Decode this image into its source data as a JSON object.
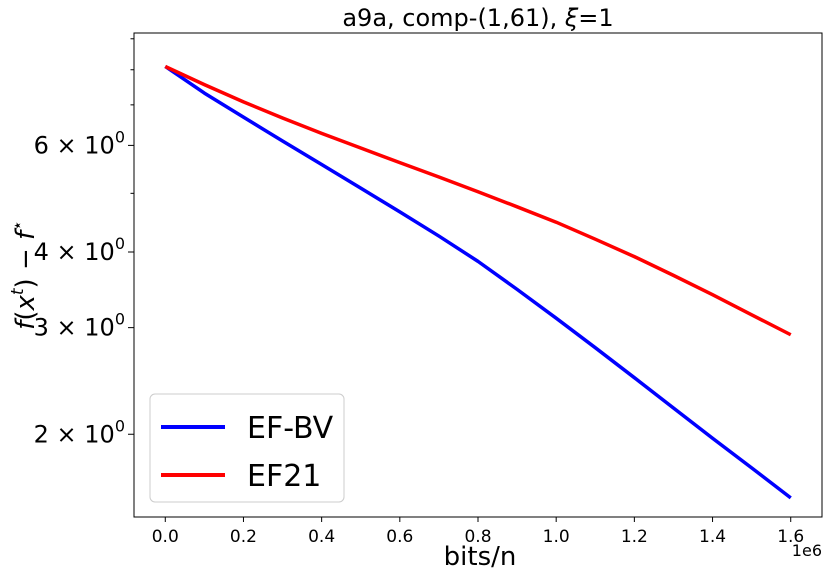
{
  "chart_data": {
    "type": "line",
    "title_parts": {
      "prefix": "a9a, comp-(1,61), ",
      "xi": "ξ",
      "suffix": "=1"
    },
    "xlabel": "bits/n",
    "ylabel_parts": {
      "f": "f",
      "open": "(",
      "x": "x",
      "t": "t",
      "close": ")",
      "minus": " − ",
      "fstar": "f",
      "star": "⋆"
    },
    "x_offset_label": "1e6",
    "x_scale_factor": 1000000,
    "x_ticks": [
      0.0,
      0.2,
      0.4,
      0.6,
      0.8,
      1.0,
      1.2,
      1.4,
      1.6
    ],
    "x_tick_labels": [
      "0.0",
      "0.2",
      "0.4",
      "0.6",
      "0.8",
      "1.0",
      "1.2",
      "1.4",
      "1.6"
    ],
    "xlim": [
      -0.08,
      1.68
    ],
    "y_scale": "log",
    "ylim": [
      1.46,
      9.2
    ],
    "y_ticks": [
      {
        "value": 6,
        "mantissa": "6",
        "base": "10",
        "exp": "0"
      },
      {
        "value": 4,
        "mantissa": "4",
        "base": "10",
        "exp": "0"
      },
      {
        "value": 3,
        "mantissa": "3",
        "base": "10",
        "exp": "0"
      },
      {
        "value": 2,
        "mantissa": "2",
        "base": "10",
        "exp": "0"
      }
    ],
    "y_minor_ticks": [
      5,
      7,
      8,
      9
    ],
    "grid": false,
    "legend_position": "lower-left",
    "series": [
      {
        "name": "EF-BV",
        "color": "#0000ff",
        "x": [
          0.0,
          0.1,
          0.2,
          0.3,
          0.4,
          0.5,
          0.6,
          0.7,
          0.8,
          0.9,
          1.0,
          1.1,
          1.2,
          1.3,
          1.4,
          1.5,
          1.6
        ],
        "y": [
          8.1,
          7.32,
          6.68,
          6.1,
          5.58,
          5.1,
          4.66,
          4.25,
          3.86,
          3.47,
          3.11,
          2.78,
          2.48,
          2.21,
          1.97,
          1.76,
          1.57
        ]
      },
      {
        "name": "EF21",
        "color": "#ff0000",
        "x": [
          0.0,
          0.1,
          0.2,
          0.3,
          0.4,
          0.5,
          0.6,
          0.7,
          0.8,
          0.9,
          1.0,
          1.1,
          1.2,
          1.3,
          1.4,
          1.5,
          1.6
        ],
        "y": [
          8.1,
          7.56,
          7.08,
          6.66,
          6.28,
          5.94,
          5.62,
          5.32,
          5.03,
          4.75,
          4.48,
          4.2,
          3.93,
          3.66,
          3.4,
          3.15,
          2.92
        ]
      }
    ]
  }
}
